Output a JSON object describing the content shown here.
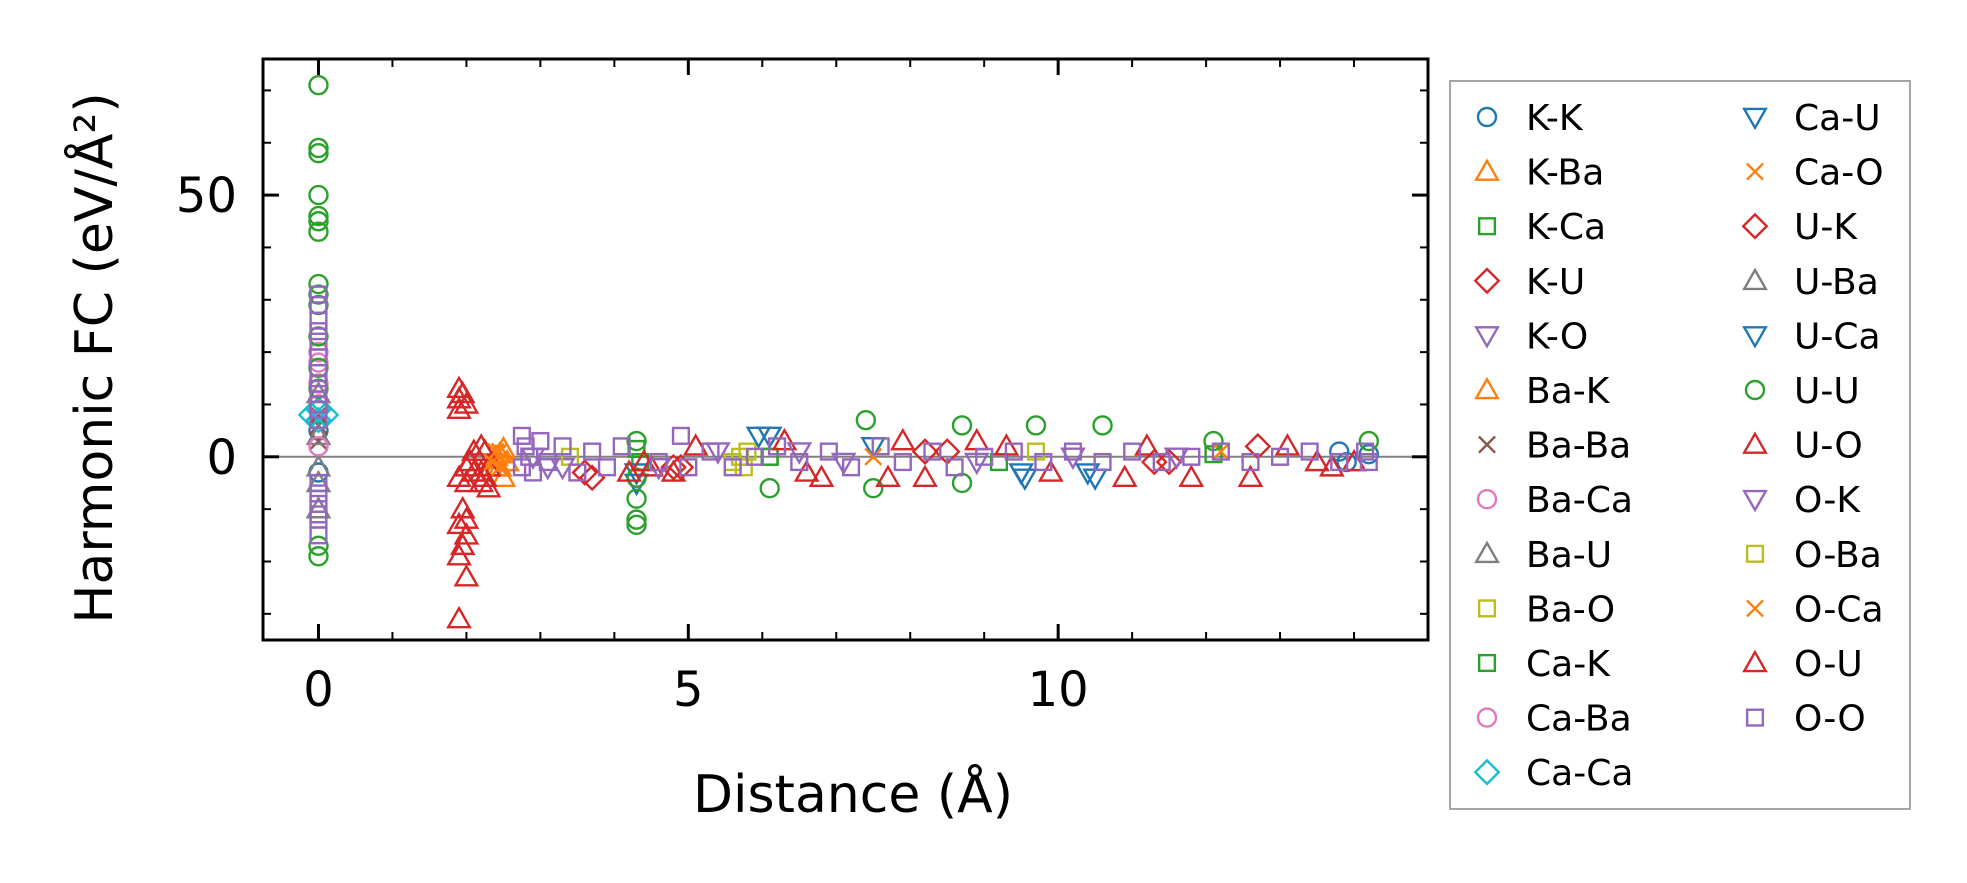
{
  "chart_data": {
    "type": "scatter",
    "xlabel": "Distance (Å)",
    "ylabel": "Harmonic FC (eV/Å²)",
    "xlim": [
      -0.75,
      15.0
    ],
    "ylim": [
      -35,
      76
    ],
    "x_ticks": [
      0,
      5,
      10
    ],
    "y_ticks": [
      0,
      50
    ],
    "x_minor_step": 1,
    "y_minor_step": 10,
    "zero_line": 0,
    "grid": false,
    "legend_position": "outside-right",
    "legend_columns": 2,
    "series": [
      {
        "name": "K-K",
        "marker": "circle",
        "color": "#1f77b4",
        "points": [
          [
            0,
            5
          ],
          [
            0,
            -3
          ],
          [
            13.8,
            1
          ],
          [
            13.9,
            -1
          ],
          [
            14.2,
            0.5
          ]
        ]
      },
      {
        "name": "K-Ba",
        "marker": "triangle-up",
        "color": "#ff7f0e",
        "points": [
          [
            2.4,
            0
          ],
          [
            2.45,
            -2
          ],
          [
            2.5,
            1.5
          ],
          [
            2.55,
            -1
          ]
        ]
      },
      {
        "name": "K-Ca",
        "marker": "square",
        "color": "#2ca02c",
        "points": [
          [
            6.1,
            0
          ],
          [
            9.2,
            -1
          ],
          [
            12.1,
            0.5
          ]
        ]
      },
      {
        "name": "K-U",
        "marker": "diamond",
        "color": "#d62728",
        "points": [
          [
            3.6,
            -3
          ],
          [
            4.8,
            -2
          ],
          [
            8.2,
            1
          ],
          [
            11.3,
            -1
          ]
        ]
      },
      {
        "name": "K-O",
        "marker": "triangle-down",
        "color": "#9467bd",
        "points": [
          [
            2.9,
            0
          ],
          [
            3.3,
            -2
          ],
          [
            5.4,
            1
          ],
          [
            7.1,
            -1
          ],
          [
            10.2,
            0
          ]
        ]
      },
      {
        "name": "Ba-K",
        "marker": "triangle-up",
        "color": "#ff7f0e",
        "points": [
          [
            2.4,
            -2
          ],
          [
            2.5,
            -4
          ],
          [
            2.45,
            0.5
          ]
        ]
      },
      {
        "name": "Ba-Ba",
        "marker": "x",
        "color": "#8c564b",
        "points": [
          [
            0,
            8
          ],
          [
            0,
            6
          ],
          [
            0,
            3
          ]
        ]
      },
      {
        "name": "Ba-Ca",
        "marker": "circle",
        "color": "#e377c2",
        "points": [
          [
            0,
            20
          ],
          [
            0,
            14
          ],
          [
            0,
            9
          ]
        ]
      },
      {
        "name": "Ba-U",
        "marker": "triangle-up",
        "color": "#7f7f7f",
        "points": [
          [
            0,
            12
          ],
          [
            0,
            4
          ],
          [
            0,
            -2
          ]
        ]
      },
      {
        "name": "Ba-O",
        "marker": "square",
        "color": "#bcbd22",
        "points": [
          [
            5.7,
            0
          ],
          [
            5.75,
            -2
          ],
          [
            5.8,
            1
          ]
        ]
      },
      {
        "name": "Ca-K",
        "marker": "square",
        "color": "#2ca02c",
        "points": [
          [
            4.3,
            1.5
          ],
          [
            4.35,
            -1
          ],
          [
            6.1,
            0
          ]
        ]
      },
      {
        "name": "Ca-Ba",
        "marker": "circle",
        "color": "#e377c2",
        "points": [
          [
            0,
            18
          ],
          [
            0,
            10
          ],
          [
            0,
            2
          ]
        ]
      },
      {
        "name": "Ca-Ca",
        "marker": "diamond",
        "color": "#17becf",
        "points": [
          [
            0,
            9
          ],
          [
            -0.1,
            8
          ],
          [
            0.1,
            8
          ],
          [
            0,
            7
          ]
        ]
      },
      {
        "name": "Ca-U",
        "marker": "triangle-down",
        "color": "#1f77b4",
        "points": [
          [
            4.3,
            -5
          ],
          [
            4.3,
            -3
          ],
          [
            6.1,
            4
          ],
          [
            7.5,
            2
          ],
          [
            9.5,
            -3
          ],
          [
            10.5,
            -4
          ]
        ]
      },
      {
        "name": "Ca-O",
        "marker": "x",
        "color": "#ff7f0e",
        "points": [
          [
            2.4,
            -1
          ],
          [
            2.45,
            1
          ],
          [
            7.5,
            0
          ],
          [
            12.2,
            1
          ]
        ]
      },
      {
        "name": "U-K",
        "marker": "diamond",
        "color": "#d62728",
        "points": [
          [
            3.7,
            -4
          ],
          [
            4.9,
            -2
          ],
          [
            8.5,
            1
          ],
          [
            11.5,
            -1
          ],
          [
            12.7,
            2
          ]
        ]
      },
      {
        "name": "U-Ba",
        "marker": "triangle-up",
        "color": "#7f7f7f",
        "points": [
          [
            0,
            -5
          ],
          [
            0,
            -10
          ]
        ]
      },
      {
        "name": "U-Ca",
        "marker": "triangle-down",
        "color": "#1f77b4",
        "points": [
          [
            5.95,
            4
          ],
          [
            9.55,
            -4
          ],
          [
            10.4,
            -3
          ]
        ]
      },
      {
        "name": "U-U",
        "marker": "circle",
        "color": "#2ca02c",
        "points": [
          [
            0,
            71
          ],
          [
            0,
            59
          ],
          [
            0,
            58
          ],
          [
            0,
            50
          ],
          [
            0,
            46
          ],
          [
            0,
            45
          ],
          [
            0,
            43
          ],
          [
            0,
            33
          ],
          [
            0,
            31
          ],
          [
            0,
            29
          ],
          [
            0,
            23
          ],
          [
            0,
            17
          ],
          [
            0,
            13
          ],
          [
            0,
            -17
          ],
          [
            0,
            -19
          ],
          [
            4.3,
            3
          ],
          [
            4.3,
            -4
          ],
          [
            4.3,
            -8
          ],
          [
            4.3,
            -12
          ],
          [
            4.3,
            -13
          ],
          [
            6.1,
            -6
          ],
          [
            7.4,
            7
          ],
          [
            7.5,
            -6
          ],
          [
            8.7,
            6
          ],
          [
            8.7,
            -5
          ],
          [
            9.7,
            6
          ],
          [
            10.6,
            6
          ],
          [
            12.1,
            3
          ],
          [
            14.2,
            3
          ]
        ]
      },
      {
        "name": "U-O",
        "marker": "triangle-up",
        "color": "#d62728",
        "points": [
          [
            1.9,
            13
          ],
          [
            1.95,
            12
          ],
          [
            1.9,
            11
          ],
          [
            2.0,
            10
          ],
          [
            1.9,
            9
          ],
          [
            2.0,
            -2
          ],
          [
            1.9,
            -4
          ],
          [
            2.0,
            -5
          ],
          [
            2.1,
            -3
          ],
          [
            2.2,
            2
          ],
          [
            2.25,
            1
          ],
          [
            2.2,
            -3
          ],
          [
            2.3,
            -2
          ],
          [
            2.25,
            -4
          ],
          [
            2.3,
            -6
          ],
          [
            2.2,
            -5
          ],
          [
            1.95,
            -10
          ],
          [
            2.0,
            -12
          ],
          [
            1.9,
            -13
          ],
          [
            2.0,
            -15
          ],
          [
            1.95,
            -17
          ],
          [
            1.9,
            -19
          ],
          [
            2.0,
            -23
          ],
          [
            1.9,
            -31
          ],
          [
            4.2,
            -3
          ],
          [
            4.5,
            -2
          ],
          [
            4.8,
            -3
          ],
          [
            5.1,
            2
          ],
          [
            6.3,
            3
          ],
          [
            6.6,
            -3
          ],
          [
            6.8,
            -4
          ],
          [
            7.7,
            -4
          ],
          [
            7.9,
            3
          ],
          [
            8.2,
            -4
          ],
          [
            8.9,
            3
          ],
          [
            9.3,
            2
          ],
          [
            9.9,
            -3
          ],
          [
            10.9,
            -4
          ],
          [
            11.2,
            2
          ],
          [
            11.8,
            -4
          ],
          [
            12.6,
            -4
          ],
          [
            13.1,
            2
          ],
          [
            13.7,
            -2
          ],
          [
            14.0,
            -1
          ]
        ]
      },
      {
        "name": "O-K",
        "marker": "triangle-down",
        "color": "#9467bd",
        "points": [
          [
            3.1,
            -2
          ],
          [
            4.6,
            -2
          ],
          [
            6.5,
            1
          ],
          [
            8.9,
            -1
          ],
          [
            11.6,
            0
          ]
        ]
      },
      {
        "name": "O-Ba",
        "marker": "square",
        "color": "#bcbd22",
        "points": [
          [
            3.4,
            0
          ],
          [
            5.6,
            -1
          ],
          [
            9.7,
            1
          ]
        ]
      },
      {
        "name": "O-Ca",
        "marker": "x",
        "color": "#ff7f0e",
        "points": [
          [
            2.4,
            1
          ],
          [
            2.35,
            -1
          ],
          [
            2.45,
            -2
          ]
        ]
      },
      {
        "name": "O-U",
        "marker": "triangle-up",
        "color": "#d62728",
        "points": [
          [
            2.1,
            1
          ],
          [
            2.05,
            -1
          ],
          [
            4.4,
            -1
          ],
          [
            13.5,
            -1
          ]
        ]
      },
      {
        "name": "O-O",
        "marker": "square",
        "color": "#9467bd",
        "points": [
          [
            0,
            31
          ],
          [
            0,
            29
          ],
          [
            0,
            26
          ],
          [
            0,
            24
          ],
          [
            0,
            22
          ],
          [
            0,
            19
          ],
          [
            0,
            16
          ],
          [
            0,
            14
          ],
          [
            0,
            12
          ],
          [
            0,
            10
          ],
          [
            0,
            9
          ],
          [
            0,
            7
          ],
          [
            0,
            -5
          ],
          [
            0,
            -7
          ],
          [
            0,
            -9
          ],
          [
            0,
            -11
          ],
          [
            0,
            -12
          ],
          [
            0,
            -15
          ],
          [
            2.75,
            4
          ],
          [
            2.8,
            2
          ],
          [
            2.85,
            0
          ],
          [
            2.75,
            -2
          ],
          [
            2.9,
            -3
          ],
          [
            3.0,
            3
          ],
          [
            3.1,
            -1
          ],
          [
            3.3,
            2
          ],
          [
            3.5,
            -3
          ],
          [
            3.7,
            1
          ],
          [
            3.9,
            -2
          ],
          [
            4.1,
            2
          ],
          [
            4.6,
            -1
          ],
          [
            4.9,
            4
          ],
          [
            5.0,
            -2
          ],
          [
            5.3,
            1
          ],
          [
            5.6,
            -2
          ],
          [
            5.9,
            0
          ],
          [
            6.2,
            2
          ],
          [
            6.5,
            -1
          ],
          [
            6.9,
            1
          ],
          [
            7.2,
            -2
          ],
          [
            7.6,
            2
          ],
          [
            7.9,
            -1
          ],
          [
            8.3,
            1
          ],
          [
            8.6,
            -2
          ],
          [
            9.0,
            0
          ],
          [
            9.4,
            1
          ],
          [
            9.8,
            -1
          ],
          [
            10.2,
            1
          ],
          [
            10.6,
            -1
          ],
          [
            11.0,
            1
          ],
          [
            11.4,
            -1
          ],
          [
            11.8,
            0
          ],
          [
            12.2,
            1
          ],
          [
            12.6,
            -1
          ],
          [
            13.0,
            0
          ],
          [
            13.4,
            1
          ],
          [
            13.8,
            -1
          ],
          [
            14.15,
            1
          ],
          [
            14.2,
            -1
          ]
        ]
      }
    ]
  }
}
